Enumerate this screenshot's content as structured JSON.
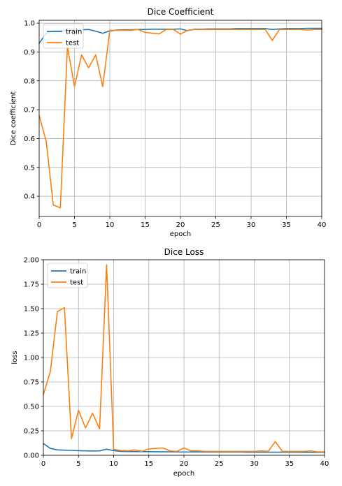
{
  "chart_data": [
    {
      "type": "line",
      "title": "Dice Coefficient",
      "xlabel": "epoch",
      "ylabel": "Dice coefficient",
      "xlim": [
        0,
        40
      ],
      "ylim": [
        0.33,
        1.01
      ],
      "xticks": [
        0,
        5,
        10,
        15,
        20,
        25,
        30,
        35,
        40
      ],
      "xtick_labels": [
        "0",
        "5",
        "10",
        "15",
        "20",
        "25",
        "30",
        "35",
        "40"
      ],
      "yticks": [
        0.4,
        0.5,
        0.6,
        0.7,
        0.8,
        0.9,
        1.0
      ],
      "ytick_labels": [
        "0.4",
        "0.5",
        "0.6",
        "0.7",
        "0.8",
        "0.9",
        "1.0"
      ],
      "grid": true,
      "legend": "upper-left",
      "x": [
        0,
        1,
        2,
        3,
        4,
        5,
        6,
        7,
        8,
        9,
        10,
        11,
        12,
        13,
        14,
        15,
        16,
        17,
        18,
        19,
        20,
        21,
        22,
        23,
        24,
        25,
        26,
        27,
        28,
        29,
        30,
        31,
        32,
        33,
        34,
        35,
        36,
        37,
        38,
        39,
        40
      ],
      "series": [
        {
          "name": "train",
          "color": "#1f77b4",
          "values": [
            0.93,
            0.965,
            0.972,
            0.974,
            0.975,
            0.976,
            0.977,
            0.978,
            0.972,
            0.965,
            0.973,
            0.976,
            0.977,
            0.977,
            0.978,
            0.978,
            0.979,
            0.979,
            0.979,
            0.979,
            0.98,
            0.974,
            0.979,
            0.979,
            0.98,
            0.98,
            0.98,
            0.98,
            0.981,
            0.981,
            0.981,
            0.981,
            0.981,
            0.978,
            0.98,
            0.981,
            0.981,
            0.981,
            0.982,
            0.982,
            0.982
          ]
        },
        {
          "name": "test",
          "color": "#ff7f0e",
          "values": [
            0.68,
            0.59,
            0.37,
            0.36,
            0.92,
            0.78,
            0.89,
            0.845,
            0.89,
            0.78,
            0.975,
            0.975,
            0.975,
            0.975,
            0.978,
            0.968,
            0.965,
            0.963,
            0.978,
            0.978,
            0.962,
            0.975,
            0.978,
            0.978,
            0.978,
            0.978,
            0.978,
            0.978,
            0.978,
            0.978,
            0.978,
            0.978,
            0.978,
            0.94,
            0.978,
            0.978,
            0.978,
            0.978,
            0.976,
            0.978,
            0.978
          ]
        }
      ]
    },
    {
      "type": "line",
      "title": "Dice Loss",
      "xlabel": "epoch",
      "ylabel": "loss",
      "xlim": [
        0,
        40
      ],
      "ylim": [
        0,
        2.0
      ],
      "xticks": [
        0,
        5,
        10,
        15,
        20,
        25,
        30,
        35,
        40
      ],
      "xtick_labels": [
        "0",
        "5",
        "10",
        "15",
        "20",
        "25",
        "30",
        "35",
        "40"
      ],
      "yticks": [
        0,
        0.25,
        0.5,
        0.75,
        1.0,
        1.25,
        1.5,
        1.75,
        2.0
      ],
      "ytick_labels": [
        "0.00",
        "0.25",
        "0.50",
        "0.75",
        "1.00",
        "1.25",
        "1.50",
        "1.75",
        "2.00"
      ],
      "grid": true,
      "legend": "upper-left",
      "x": [
        0,
        1,
        2,
        3,
        4,
        5,
        6,
        7,
        8,
        9,
        10,
        11,
        12,
        13,
        14,
        15,
        16,
        17,
        18,
        19,
        20,
        21,
        22,
        23,
        24,
        25,
        26,
        27,
        28,
        29,
        30,
        31,
        32,
        33,
        34,
        35,
        36,
        37,
        38,
        39,
        40
      ],
      "series": [
        {
          "name": "train",
          "color": "#1f77b4",
          "values": [
            0.12,
            0.07,
            0.055,
            0.052,
            0.05,
            0.047,
            0.045,
            0.044,
            0.045,
            0.062,
            0.048,
            0.04,
            0.038,
            0.038,
            0.037,
            0.037,
            0.036,
            0.035,
            0.035,
            0.034,
            0.034,
            0.034,
            0.034,
            0.033,
            0.033,
            0.033,
            0.033,
            0.033,
            0.033,
            0.032,
            0.032,
            0.032,
            0.032,
            0.032,
            0.032,
            0.032,
            0.032,
            0.031,
            0.031,
            0.031,
            0.031
          ]
        },
        {
          "name": "test",
          "color": "#ff7f0e",
          "values": [
            0.62,
            0.86,
            1.47,
            1.51,
            0.17,
            0.46,
            0.28,
            0.43,
            0.27,
            1.95,
            0.06,
            0.05,
            0.045,
            0.055,
            0.04,
            0.065,
            0.07,
            0.075,
            0.045,
            0.04,
            0.075,
            0.045,
            0.045,
            0.04,
            0.04,
            0.04,
            0.04,
            0.04,
            0.04,
            0.04,
            0.04,
            0.045,
            0.04,
            0.14,
            0.04,
            0.04,
            0.04,
            0.04,
            0.045,
            0.035,
            0.035
          ]
        }
      ]
    }
  ]
}
